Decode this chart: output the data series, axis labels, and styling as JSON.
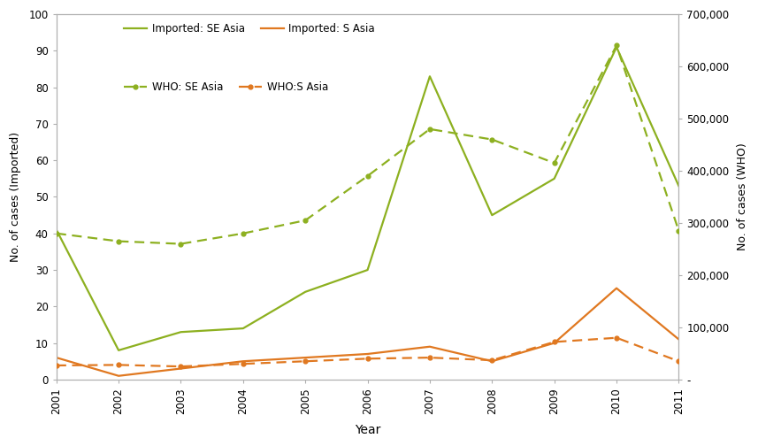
{
  "years": [
    2001,
    2002,
    2003,
    2004,
    2005,
    2006,
    2007,
    2008,
    2009,
    2010,
    2011
  ],
  "imported_se_asia": [
    41,
    8,
    13,
    14,
    24,
    30,
    83,
    45,
    55,
    91,
    53
  ],
  "imported_s_asia": [
    6,
    1,
    3,
    5,
    6,
    7,
    9,
    5,
    10,
    25,
    11
  ],
  "who_se_asia": [
    280000,
    265000,
    260000,
    280000,
    305000,
    390000,
    480000,
    460000,
    415000,
    640000,
    285000
  ],
  "who_s_asia": [
    27000,
    28000,
    25000,
    30000,
    35000,
    40000,
    42000,
    37000,
    72000,
    80000,
    35000
  ],
  "color_green": "#8DB020",
  "color_orange": "#E07820",
  "left_ylim": [
    0,
    100
  ],
  "right_ylim": [
    0,
    700000
  ],
  "left_yticks": [
    0,
    10,
    20,
    30,
    40,
    50,
    60,
    70,
    80,
    90,
    100
  ],
  "right_yticks": [
    0,
    100000,
    200000,
    300000,
    400000,
    500000,
    600000,
    700000
  ],
  "right_ytick_labels": [
    "-",
    "100,000",
    "200,000",
    "300,000",
    "400,000",
    "500,000",
    "600,000",
    "700,000"
  ],
  "xlabel": "Year",
  "ylabel_left": "No. of cases (Imported)",
  "ylabel_right": "No. of cases (WHO)",
  "legend_imported_se": "Imported: SE Asia",
  "legend_imported_s": "Imported: S Asia",
  "legend_who_se": "WHO: SE Asia",
  "legend_who_s": "WHO:S Asia",
  "background_color": "#ffffff",
  "figwidth": 8.57,
  "figheight": 5.04,
  "dpi": 100
}
